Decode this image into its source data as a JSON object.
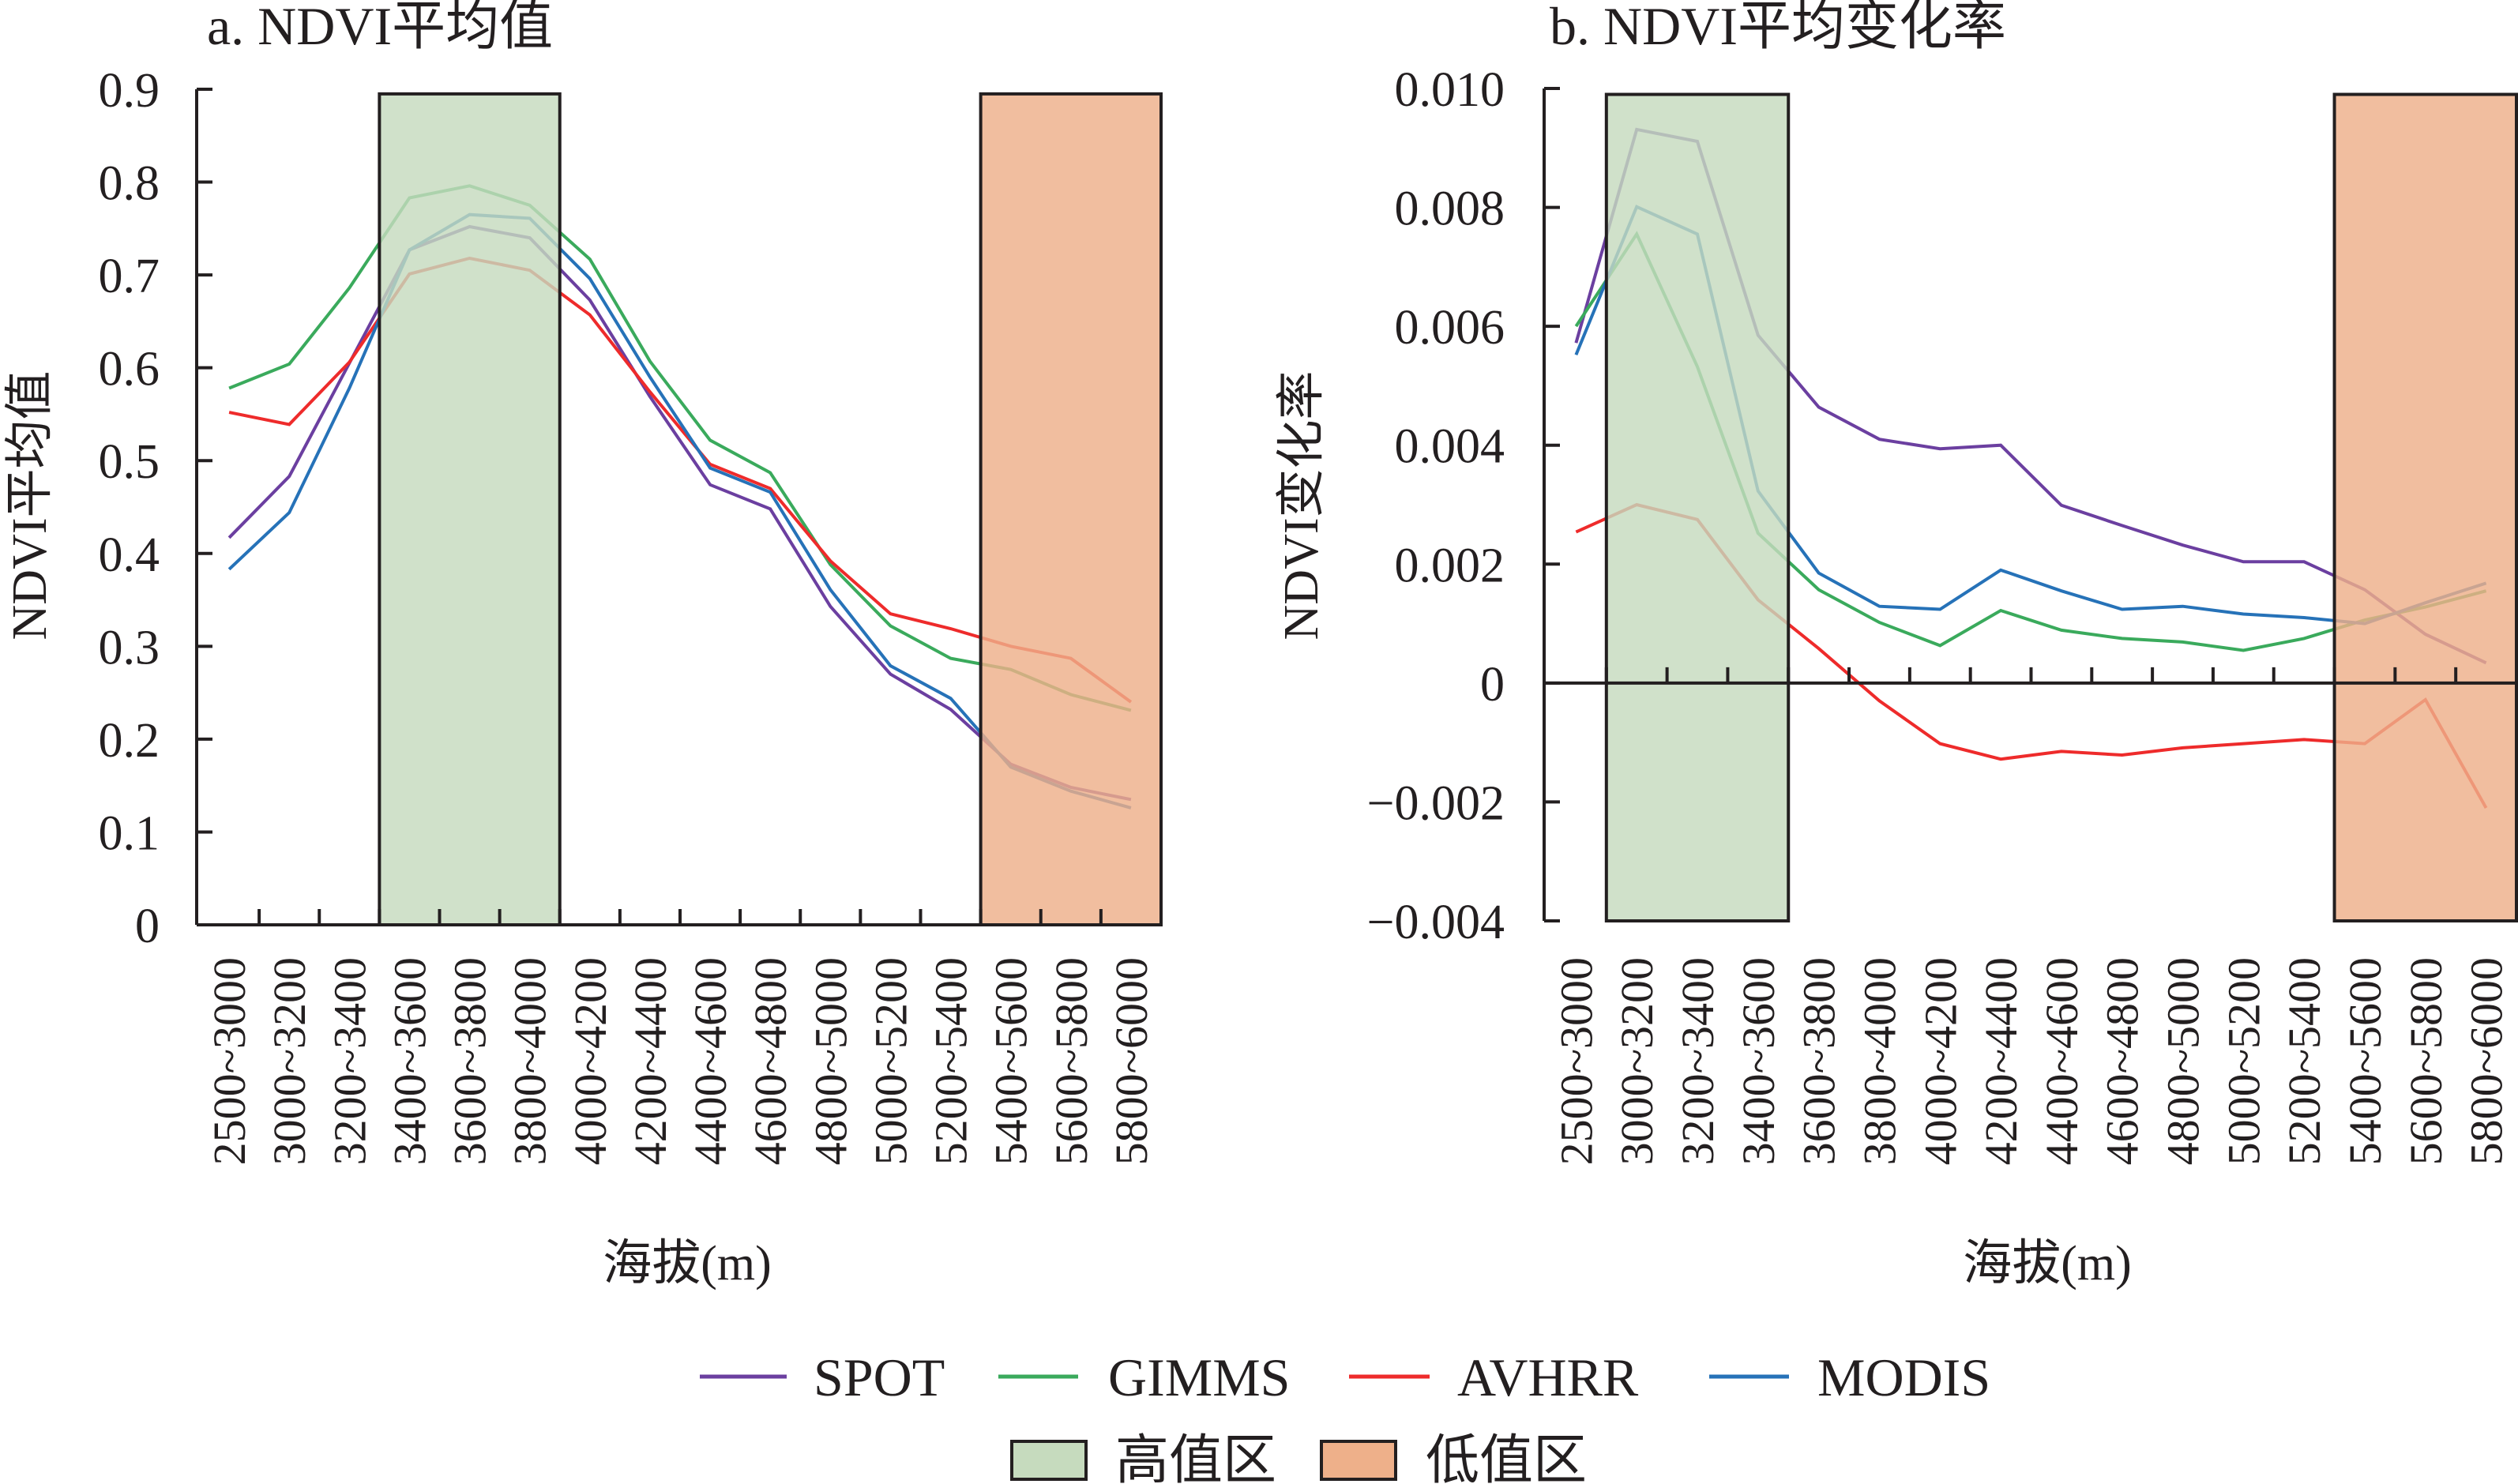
{
  "legend": {
    "series": [
      {
        "name": "SPOT",
        "color": "#6b3fa0"
      },
      {
        "name": "GIMMS",
        "color": "#3aaa5c"
      },
      {
        "name": "AVHRR",
        "color": "#ee2b2b"
      },
      {
        "name": "MODIS",
        "color": "#2672b8"
      }
    ],
    "regions": [
      {
        "name": "高值区",
        "color": "#c6dbbe"
      },
      {
        "name": "低值区",
        "color": "#eeb08a"
      }
    ]
  },
  "chart_data": [
    {
      "type": "line",
      "title": "a. NDVI平均值",
      "xlabel": "海拔(m)",
      "ylabel": "NDVI平均值",
      "ylim": [
        0,
        0.9
      ],
      "yticks": [
        0,
        0.1,
        0.2,
        0.3,
        0.4,
        0.5,
        0.6,
        0.7,
        0.8,
        0.9
      ],
      "ytick_labels": [
        "0",
        "0.1",
        "0.2",
        "0.3",
        "0.4",
        "0.5",
        "0.6",
        "0.7",
        "0.8",
        "0.9"
      ],
      "grid": false,
      "categories": [
        "2500~3000",
        "3000~3200",
        "3200~3400",
        "3400~3600",
        "3600~3800",
        "3800~4000",
        "4000~4200",
        "4200~4400",
        "4400~4600",
        "4600~4800",
        "4800~5000",
        "5000~5200",
        "5200~5400",
        "5400~5600",
        "5600~5800",
        "5800~6000"
      ],
      "series": [
        {
          "name": "SPOT",
          "values": [
            0.417,
            0.483,
            0.605,
            0.727,
            0.752,
            0.74,
            0.673,
            0.569,
            0.474,
            0.448,
            0.343,
            0.27,
            0.232,
            0.173,
            0.148,
            0.135
          ]
        },
        {
          "name": "GIMMS",
          "values": [
            0.578,
            0.604,
            0.686,
            0.783,
            0.796,
            0.775,
            0.717,
            0.607,
            0.522,
            0.487,
            0.388,
            0.322,
            0.287,
            0.275,
            0.248,
            0.231
          ]
        },
        {
          "name": "AVHRR",
          "values": [
            0.552,
            0.539,
            0.606,
            0.701,
            0.718,
            0.705,
            0.657,
            0.574,
            0.496,
            0.47,
            0.392,
            0.335,
            0.319,
            0.3,
            0.287,
            0.24
          ]
        },
        {
          "name": "MODIS",
          "values": [
            0.383,
            0.444,
            0.578,
            0.727,
            0.765,
            0.761,
            0.696,
            0.59,
            0.492,
            0.466,
            0.361,
            0.279,
            0.244,
            0.17,
            0.144,
            0.126
          ]
        }
      ],
      "regions": [
        {
          "name": "高值区",
          "from": "3400~3600",
          "to": "3800~4000",
          "ymax": 0.895
        },
        {
          "name": "低值区",
          "from": "5400~5600",
          "to": "5800~6000",
          "ymax": 0.895
        }
      ]
    },
    {
      "type": "line",
      "title": "b. NDVI平均变化率",
      "xlabel": "海拔(m)",
      "ylabel": "NDVI变化率",
      "ylim": [
        -0.004,
        0.01
      ],
      "yticks": [
        -0.004,
        -0.002,
        0,
        0.002,
        0.004,
        0.006,
        0.008,
        0.01
      ],
      "ytick_labels": [
        "−0.004",
        "−0.002",
        "0",
        "0.002",
        "0.004",
        "0.006",
        "0.008",
        "0.010"
      ],
      "grid": false,
      "categories": [
        "2500~3000",
        "3000~3200",
        "3200~3400",
        "3400~3600",
        "3600~3800",
        "3800~4000",
        "4000~4200",
        "4200~4400",
        "4400~4600",
        "4600~4800",
        "4800~5000",
        "5000~5200",
        "5200~5400",
        "5400~5600",
        "5600~5800",
        "5800~6000"
      ],
      "series": [
        {
          "name": "SPOT",
          "values": [
            0.00572,
            0.00931,
            0.00911,
            0.00585,
            0.00464,
            0.0041,
            0.00394,
            0.004,
            0.00299,
            0.00265,
            0.00232,
            0.00204,
            0.00204,
            0.00157,
            0.00082,
            0.00034
          ]
        },
        {
          "name": "GIMMS",
          "values": [
            0.006,
            0.00755,
            0.00532,
            0.00252,
            0.00157,
            0.00102,
            0.00063,
            0.00122,
            0.00089,
            0.00075,
            0.00069,
            0.00055,
            0.00075,
            0.00106,
            0.00128,
            0.00155
          ]
        },
        {
          "name": "AVHRR",
          "values": [
            0.00254,
            0.003,
            0.00275,
            0.0014,
            0.00058,
            -0.0003,
            -0.00102,
            -0.00128,
            -0.00115,
            -0.00121,
            -0.00109,
            -0.00102,
            -0.00095,
            -0.00102,
            -0.00028,
            -0.0021
          ]
        },
        {
          "name": "MODIS",
          "values": [
            0.00552,
            0.00801,
            0.00755,
            0.00323,
            0.00185,
            0.00129,
            0.00124,
            0.0019,
            0.00155,
            0.00124,
            0.00129,
            0.00116,
            0.0011,
            0.001,
            0.00135,
            0.00168
          ]
        }
      ],
      "regions": [
        {
          "name": "高值区",
          "from": "3000~3200",
          "to": "3400~3600",
          "ymax": 0.0099
        },
        {
          "name": "低值区",
          "from": "5400~5600",
          "to": "5800~6000",
          "ymax": 0.0099
        }
      ]
    }
  ]
}
